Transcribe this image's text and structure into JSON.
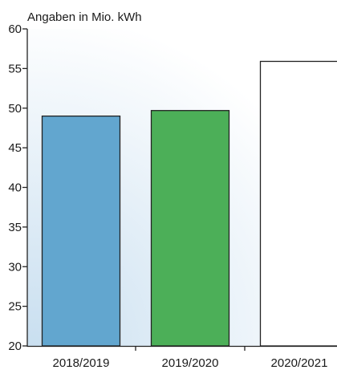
{
  "chart_data": {
    "type": "bar",
    "unit_label": "Angaben in Mio. kWh",
    "categories": [
      "2018/2019",
      "2019/2020",
      "2020/2021"
    ],
    "values": [
      49.0,
      49.7,
      55.9
    ],
    "bar_colors": [
      "#62a6cf",
      "#4caf58",
      "#ffffff"
    ],
    "ylim": [
      20,
      60
    ],
    "yticks": [
      20,
      25,
      30,
      35,
      40,
      45,
      50,
      55,
      60
    ],
    "grid": false,
    "background_gradient": [
      "#c9dff0",
      "#ffffff"
    ]
  }
}
